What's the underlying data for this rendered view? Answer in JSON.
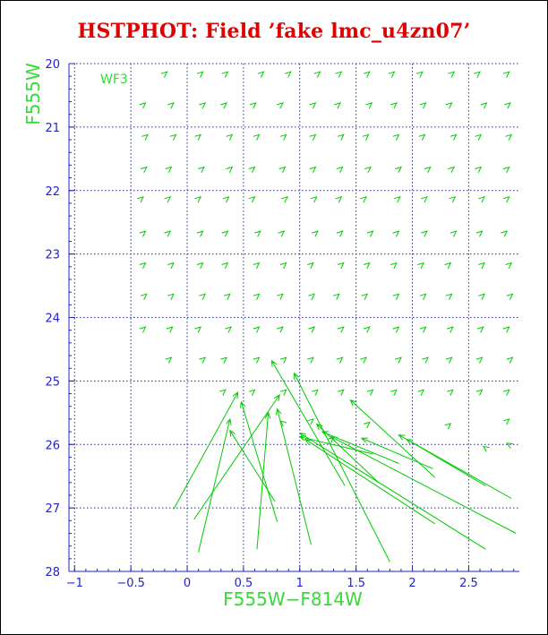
{
  "title": "HSTPHOT: Field ’fake lmc_u4zn07’",
  "colors": {
    "title": "#e00000",
    "axis": "#2222cc",
    "grid": "#2222cc",
    "data": "#00cc00",
    "label": "#33dd33"
  },
  "chart_data": {
    "type": "scatter",
    "subtype": "vector-field",
    "title": "HSTPHOT: Field ’fake lmc_u4zn07’",
    "xlabel": "F555W−F814W",
    "ylabel": "F555W",
    "xlim": [
      -1.05,
      2.95
    ],
    "ylim": [
      28,
      20
    ],
    "y_inverted": true,
    "grid": true,
    "grid_style": "dotted",
    "x_ticks": [
      -1,
      -0.5,
      0,
      0.5,
      1,
      1.5,
      2,
      2.5
    ],
    "x_tick_labels": [
      "−1",
      "−0.5",
      "0",
      "0.5",
      "1",
      "1.5",
      "2",
      "2.5"
    ],
    "y_ticks": [
      20,
      21,
      22,
      23,
      24,
      25,
      26,
      27,
      28
    ],
    "y_tick_labels": [
      "20",
      "21",
      "22",
      "23",
      "24",
      "25",
      "26",
      "27",
      "28"
    ],
    "annotations": [
      {
        "text": "WF3"
      }
    ],
    "arrows": [
      [
        -0.2,
        20.16,
        -0.18,
        20.13
      ],
      [
        0.12,
        20.16,
        0.14,
        20.13
      ],
      [
        0.34,
        20.16,
        0.36,
        20.13
      ],
      [
        0.66,
        20.16,
        0.68,
        20.13
      ],
      [
        0.9,
        20.16,
        0.92,
        20.13
      ],
      [
        1.16,
        20.16,
        1.18,
        20.13
      ],
      [
        1.35,
        20.16,
        1.37,
        20.13
      ],
      [
        1.6,
        20.16,
        1.62,
        20.13
      ],
      [
        1.82,
        20.16,
        1.84,
        20.13
      ],
      [
        2.07,
        20.16,
        2.09,
        20.13
      ],
      [
        2.35,
        20.16,
        2.37,
        20.13
      ],
      [
        2.58,
        20.16,
        2.6,
        20.13
      ],
      [
        2.84,
        20.16,
        2.86,
        20.13
      ],
      [
        -0.39,
        20.65,
        -0.37,
        20.62
      ],
      [
        -0.14,
        20.65,
        -0.12,
        20.62
      ],
      [
        0.14,
        20.65,
        0.16,
        20.62
      ],
      [
        0.33,
        20.65,
        0.35,
        20.62
      ],
      [
        0.59,
        20.65,
        0.61,
        20.62
      ],
      [
        0.83,
        20.65,
        0.85,
        20.62
      ],
      [
        1.12,
        20.65,
        1.14,
        20.62
      ],
      [
        1.34,
        20.65,
        1.36,
        20.62
      ],
      [
        1.62,
        20.65,
        1.64,
        20.62
      ],
      [
        1.84,
        20.65,
        1.86,
        20.62
      ],
      [
        2.1,
        20.65,
        2.12,
        20.62
      ],
      [
        2.33,
        20.65,
        2.35,
        20.62
      ],
      [
        2.64,
        20.65,
        2.66,
        20.62
      ],
      [
        2.85,
        20.65,
        2.87,
        20.62
      ],
      [
        -0.37,
        21.15,
        -0.35,
        21.12
      ],
      [
        -0.12,
        21.15,
        -0.1,
        21.12
      ],
      [
        0.1,
        21.15,
        0.12,
        21.12
      ],
      [
        0.38,
        21.15,
        0.4,
        21.12
      ],
      [
        0.62,
        21.15,
        0.64,
        21.12
      ],
      [
        0.86,
        21.15,
        0.88,
        21.12
      ],
      [
        1.12,
        21.15,
        1.14,
        21.12
      ],
      [
        1.37,
        21.15,
        1.39,
        21.12
      ],
      [
        1.59,
        21.15,
        1.61,
        21.12
      ],
      [
        1.86,
        21.15,
        1.88,
        21.12
      ],
      [
        2.09,
        21.15,
        2.11,
        21.12
      ],
      [
        2.37,
        21.15,
        2.39,
        21.12
      ],
      [
        2.59,
        21.15,
        2.61,
        21.12
      ],
      [
        2.86,
        21.15,
        2.88,
        21.12
      ],
      [
        -0.38,
        21.66,
        -0.36,
        21.63
      ],
      [
        -0.16,
        21.66,
        -0.14,
        21.63
      ],
      [
        0.13,
        21.66,
        0.15,
        21.63
      ],
      [
        0.38,
        21.66,
        0.4,
        21.63
      ],
      [
        0.58,
        21.66,
        0.6,
        21.63
      ],
      [
        0.85,
        21.66,
        0.87,
        21.63
      ],
      [
        1.12,
        21.66,
        1.14,
        21.63
      ],
      [
        1.36,
        21.66,
        1.38,
        21.63
      ],
      [
        1.61,
        21.66,
        1.63,
        21.63
      ],
      [
        1.88,
        21.66,
        1.9,
        21.63
      ],
      [
        2.14,
        21.66,
        2.16,
        21.63
      ],
      [
        2.35,
        21.66,
        2.37,
        21.63
      ],
      [
        2.59,
        21.66,
        2.61,
        21.63
      ],
      [
        2.84,
        21.66,
        2.86,
        21.63
      ],
      [
        -0.41,
        22.13,
        -0.39,
        22.1
      ],
      [
        -0.17,
        22.13,
        -0.15,
        22.1
      ],
      [
        0.1,
        22.13,
        0.12,
        22.1
      ],
      [
        0.35,
        22.13,
        0.37,
        22.1
      ],
      [
        0.58,
        22.13,
        0.6,
        22.1
      ],
      [
        0.87,
        22.13,
        0.89,
        22.1
      ],
      [
        1.13,
        22.13,
        1.15,
        22.1
      ],
      [
        1.35,
        22.13,
        1.37,
        22.1
      ],
      [
        1.57,
        22.13,
        1.59,
        22.1
      ],
      [
        1.87,
        22.13,
        1.89,
        22.1
      ],
      [
        2.11,
        22.13,
        2.13,
        22.1
      ],
      [
        2.36,
        22.13,
        2.38,
        22.1
      ],
      [
        2.62,
        22.13,
        2.64,
        22.1
      ],
      [
        2.84,
        22.13,
        2.86,
        22.1
      ],
      [
        -0.39,
        22.67,
        -0.37,
        22.64
      ],
      [
        -0.17,
        22.67,
        -0.15,
        22.64
      ],
      [
        0.12,
        22.67,
        0.14,
        22.64
      ],
      [
        0.34,
        22.67,
        0.36,
        22.64
      ],
      [
        0.63,
        22.67,
        0.65,
        22.64
      ],
      [
        0.84,
        22.67,
        0.86,
        22.64
      ],
      [
        1.14,
        22.67,
        1.16,
        22.64
      ],
      [
        1.36,
        22.67,
        1.38,
        22.64
      ],
      [
        1.63,
        22.67,
        1.65,
        22.64
      ],
      [
        1.86,
        22.67,
        1.88,
        22.64
      ],
      [
        2.11,
        22.67,
        2.13,
        22.64
      ],
      [
        2.37,
        22.67,
        2.39,
        22.64
      ],
      [
        2.6,
        22.67,
        2.62,
        22.64
      ],
      [
        2.82,
        22.67,
        2.84,
        22.64
      ],
      [
        -0.39,
        23.17,
        -0.37,
        23.14
      ],
      [
        -0.14,
        23.17,
        -0.12,
        23.14
      ],
      [
        0.12,
        23.17,
        0.14,
        23.14
      ],
      [
        0.34,
        23.17,
        0.36,
        23.14
      ],
      [
        0.62,
        23.17,
        0.64,
        23.14
      ],
      [
        0.86,
        23.17,
        0.88,
        23.14
      ],
      [
        1.1,
        23.17,
        1.12,
        23.14
      ],
      [
        1.37,
        23.17,
        1.39,
        23.14
      ],
      [
        1.6,
        23.17,
        1.62,
        23.14
      ],
      [
        1.84,
        23.17,
        1.86,
        23.14
      ],
      [
        2.08,
        23.17,
        2.1,
        23.14
      ],
      [
        2.32,
        23.17,
        2.34,
        23.14
      ],
      [
        2.62,
        23.17,
        2.64,
        23.14
      ],
      [
        2.86,
        23.17,
        2.88,
        23.14
      ],
      [
        -0.38,
        23.66,
        -0.36,
        23.63
      ],
      [
        -0.14,
        23.66,
        -0.12,
        23.63
      ],
      [
        0.14,
        23.66,
        0.16,
        23.63
      ],
      [
        0.36,
        23.66,
        0.38,
        23.63
      ],
      [
        0.62,
        23.66,
        0.64,
        23.63
      ],
      [
        0.83,
        23.66,
        0.85,
        23.63
      ],
      [
        1.11,
        23.66,
        1.13,
        23.63
      ],
      [
        1.33,
        23.66,
        1.35,
        23.63
      ],
      [
        1.58,
        23.66,
        1.6,
        23.63
      ],
      [
        1.86,
        23.66,
        1.88,
        23.63
      ],
      [
        2.1,
        23.66,
        2.12,
        23.63
      ],
      [
        2.33,
        23.66,
        2.35,
        23.63
      ],
      [
        2.62,
        23.66,
        2.64,
        23.63
      ],
      [
        2.87,
        23.66,
        2.89,
        23.63
      ],
      [
        -0.39,
        24.18,
        -0.37,
        24.15
      ],
      [
        -0.15,
        24.18,
        -0.13,
        24.15
      ],
      [
        0.1,
        24.18,
        0.12,
        24.15
      ],
      [
        0.37,
        24.18,
        0.39,
        24.15
      ],
      [
        0.62,
        24.18,
        0.64,
        24.15
      ],
      [
        0.83,
        24.18,
        0.85,
        24.15
      ],
      [
        1.11,
        24.18,
        1.13,
        24.15
      ],
      [
        1.37,
        24.18,
        1.39,
        24.15
      ],
      [
        1.6,
        24.18,
        1.62,
        24.15
      ],
      [
        1.86,
        24.18,
        1.88,
        24.15
      ],
      [
        2.1,
        24.18,
        2.12,
        24.15
      ],
      [
        2.34,
        24.18,
        2.36,
        24.15
      ],
      [
        2.61,
        24.18,
        2.63,
        24.15
      ],
      [
        2.84,
        24.18,
        2.86,
        24.15
      ],
      [
        -0.16,
        24.66,
        -0.14,
        24.63
      ],
      [
        0.14,
        24.66,
        0.16,
        24.63
      ],
      [
        0.33,
        24.66,
        0.35,
        24.63
      ],
      [
        0.62,
        24.66,
        0.64,
        24.63
      ],
      [
        0.86,
        24.66,
        0.88,
        24.63
      ],
      [
        1.1,
        24.66,
        1.12,
        24.63
      ],
      [
        1.36,
        24.66,
        1.38,
        24.63
      ],
      [
        1.57,
        24.66,
        1.59,
        24.63
      ],
      [
        1.88,
        24.66,
        1.9,
        24.63
      ],
      [
        2.12,
        24.66,
        2.14,
        24.63
      ],
      [
        2.33,
        24.66,
        2.35,
        24.63
      ],
      [
        2.6,
        24.66,
        2.62,
        24.63
      ],
      [
        2.87,
        24.66,
        2.89,
        24.63
      ],
      [
        0.32,
        25.17,
        0.34,
        25.14
      ],
      [
        0.58,
        25.17,
        0.6,
        25.14
      ],
      [
        0.86,
        25.17,
        0.88,
        25.14
      ],
      [
        1.14,
        25.17,
        1.16,
        25.14
      ],
      [
        1.37,
        25.17,
        1.39,
        25.14
      ],
      [
        1.63,
        25.17,
        1.65,
        25.14
      ],
      [
        1.84,
        25.17,
        1.86,
        25.14
      ],
      [
        2.08,
        25.17,
        2.1,
        25.14
      ],
      [
        2.34,
        25.17,
        2.36,
        25.14
      ],
      [
        2.6,
        25.17,
        2.62,
        25.14
      ],
      [
        2.84,
        25.17,
        2.86,
        25.14
      ],
      [
        1.1,
        25.63,
        1.12,
        25.6
      ],
      [
        2.84,
        25.63,
        2.86,
        25.6
      ],
      [
        0.85,
        25.66,
        0.83,
        25.63
      ],
      [
        1.6,
        25.68,
        1.62,
        25.65
      ],
      [
        2.32,
        25.7,
        2.34,
        25.67
      ],
      [
        2.67,
        26.08,
        2.63,
        26.03
      ],
      [
        2.88,
        26.02,
        2.84,
        25.98
      ],
      [
        1.28,
        25.92,
        1.3,
        25.89
      ],
      [
        -0.12,
        27.02,
        0.45,
        25.18
      ],
      [
        0.1,
        27.7,
        0.38,
        25.6
      ],
      [
        0.06,
        27.18,
        0.82,
        25.22
      ],
      [
        0.62,
        27.65,
        0.72,
        25.5
      ],
      [
        0.8,
        27.22,
        0.48,
        25.33
      ],
      [
        1.1,
        27.58,
        0.8,
        25.44
      ],
      [
        0.78,
        26.9,
        0.38,
        25.78
      ],
      [
        1.4,
        26.65,
        0.75,
        24.68
      ],
      [
        1.8,
        27.85,
        0.95,
        24.88
      ],
      [
        2.92,
        27.4,
        1.28,
        25.88
      ],
      [
        2.65,
        27.65,
        1.0,
        25.82
      ],
      [
        2.2,
        27.25,
        1.05,
        25.92
      ],
      [
        1.7,
        26.6,
        1.15,
        25.68
      ],
      [
        2.88,
        26.85,
        1.88,
        25.85
      ],
      [
        2.65,
        26.65,
        1.95,
        25.92
      ],
      [
        2.2,
        26.52,
        1.45,
        25.3
      ],
      [
        2.18,
        26.38,
        1.55,
        25.9
      ],
      [
        1.88,
        26.3,
        1.2,
        25.8
      ],
      [
        1.65,
        26.15,
        1.0,
        25.88
      ]
    ]
  }
}
